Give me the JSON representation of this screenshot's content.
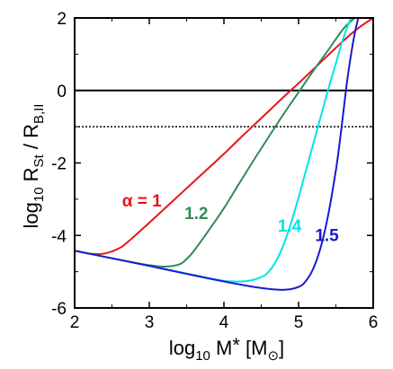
{
  "chart_data": {
    "type": "line",
    "title": "",
    "xlabel": {
      "prefix": "log",
      "sub": "10",
      "main": " M",
      "star": "*",
      "open": " [M",
      "sun": "⊙",
      "close": "]"
    },
    "ylabel": {
      "prefix": "log",
      "sub": "10",
      "main": " R",
      "sub2": "St",
      "mid": " / R",
      "sub3": "B,II"
    },
    "xlim": [
      2,
      6
    ],
    "ylim": [
      -6,
      2
    ],
    "xticks": [
      2,
      3,
      4,
      5,
      6
    ],
    "yticks": [
      -6,
      -4,
      -2,
      0,
      2
    ],
    "xtick_labels": [
      "2",
      "3",
      "4",
      "5",
      "6"
    ],
    "ytick_labels": [
      "-6",
      "-4",
      "-2",
      "0",
      "2"
    ],
    "hlines": [
      {
        "y": 0,
        "style": "solid",
        "color": "#000000"
      },
      {
        "y": -1,
        "style": "dotted",
        "color": "#000000"
      }
    ],
    "series": [
      {
        "name": "α = 1",
        "color": "#e8141c",
        "x": [
          2.0,
          2.2,
          2.4,
          2.6,
          2.7,
          2.8,
          3.0,
          3.2,
          3.4,
          3.6,
          3.8,
          4.0,
          4.2,
          4.4,
          4.6,
          4.8,
          5.0,
          5.2,
          5.4,
          5.6,
          5.8,
          6.0
        ],
        "y": [
          -4.42,
          -4.5,
          -4.5,
          -4.35,
          -4.2,
          -4.02,
          -3.65,
          -3.27,
          -2.89,
          -2.51,
          -2.13,
          -1.75,
          -1.35,
          -0.96,
          -0.57,
          -0.18,
          0.2,
          0.59,
          0.98,
          1.37,
          1.72,
          2.0
        ]
      },
      {
        "name": "1.2",
        "color": "#2e8b57",
        "x": [
          2.0,
          2.4,
          2.8,
          3.0,
          3.2,
          3.4,
          3.5,
          3.6,
          3.8,
          4.0,
          4.2,
          4.4,
          4.6,
          4.8,
          5.0,
          5.2,
          5.4,
          5.6,
          5.75
        ],
        "y": [
          -4.42,
          -4.59,
          -4.75,
          -4.82,
          -4.86,
          -4.8,
          -4.65,
          -4.42,
          -3.85,
          -3.25,
          -2.58,
          -1.92,
          -1.28,
          -0.65,
          -0.05,
          0.55,
          1.12,
          1.7,
          2.0
        ]
      },
      {
        "name": "1.4",
        "color": "#00e5e5",
        "x": [
          2.0,
          2.5,
          3.0,
          3.5,
          4.0,
          4.3,
          4.5,
          4.6,
          4.7,
          4.8,
          4.9,
          5.0,
          5.1,
          5.2,
          5.3,
          5.4,
          5.5,
          5.6,
          5.7
        ],
        "y": [
          -4.42,
          -4.63,
          -4.84,
          -5.05,
          -5.25,
          -5.26,
          -5.15,
          -5.0,
          -4.7,
          -4.25,
          -3.65,
          -2.95,
          -2.2,
          -1.45,
          -0.7,
          0.05,
          0.75,
          1.45,
          2.0
        ]
      },
      {
        "name": "1.5",
        "color": "#1a1acd",
        "x": [
          2.0,
          2.5,
          3.0,
          3.5,
          4.0,
          4.5,
          4.8,
          5.0,
          5.1,
          5.2,
          5.3,
          5.4,
          5.5,
          5.55,
          5.6,
          5.65,
          5.7,
          5.75,
          5.8
        ],
        "y": [
          -4.42,
          -4.63,
          -4.84,
          -5.06,
          -5.27,
          -5.45,
          -5.5,
          -5.42,
          -5.25,
          -4.9,
          -4.3,
          -3.4,
          -2.2,
          -1.45,
          -0.6,
          0.25,
          0.95,
          1.55,
          2.0
        ]
      }
    ],
    "annotations": [
      {
        "text": "α = 1",
        "color": "#e8141c",
        "x": 2.9,
        "y": -3.2
      },
      {
        "text": "1.2",
        "color": "#2e8b57",
        "x": 3.63,
        "y": -3.55
      },
      {
        "text": "1.4",
        "color": "#00e5e5",
        "x": 4.88,
        "y": -3.9
      },
      {
        "text": "1.5",
        "color": "#1a1acd",
        "x": 5.38,
        "y": -4.15
      }
    ]
  }
}
